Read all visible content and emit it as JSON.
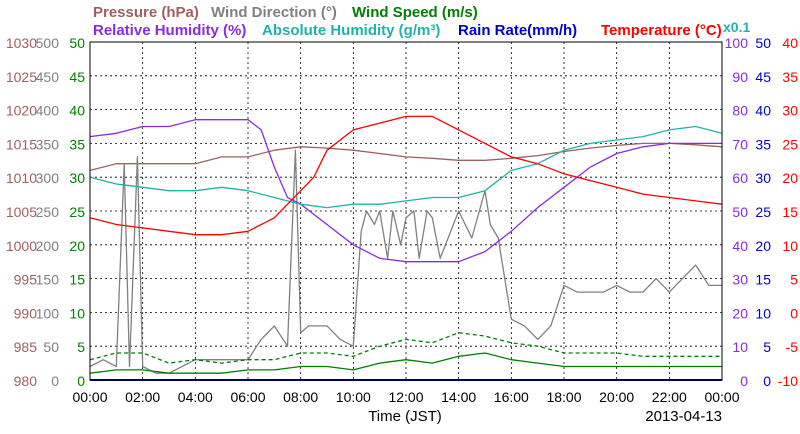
{
  "chart_data": {
    "type": "line",
    "date": "2013-04-13",
    "xlabel": "Time (JST)",
    "x_ticks": [
      "00:00",
      "02:00",
      "04:00",
      "06:00",
      "08:00",
      "10:00",
      "12:00",
      "14:00",
      "16:00",
      "18:00",
      "20:00",
      "22:00",
      "00:00"
    ],
    "grid": true,
    "legend": [
      {
        "text": "Pressure (hPa)",
        "color": "#a0605f"
      },
      {
        "text": "Wind Direction (°)",
        "color": "#808080"
      },
      {
        "text": "Wind Speed (m/s)",
        "color": "#008000"
      },
      {
        "text": "Relative Humidity (%)",
        "color": "#8a2be2"
      },
      {
        "text": "Absolute Humidity (g/m³)",
        "color": "#20b2aa"
      },
      {
        "text": "Rain Rate(mm/h)",
        "color": "#0000cc"
      },
      {
        "text": "Temperature (°C)",
        "color": "#ff0000"
      }
    ],
    "rain_scale_note": "x0.1",
    "axes": {
      "pressure": {
        "color": "#a0605f",
        "ylim": [
          980,
          1030
        ],
        "ticks": [
          "1030",
          "1025",
          "1020",
          "1015",
          "1010",
          "1005",
          "1000",
          "995",
          "990",
          "985",
          "980"
        ]
      },
      "wind_direction": {
        "color": "#808080",
        "ylim": [
          0,
          500
        ],
        "ticks": [
          "500",
          "450",
          "400",
          "350",
          "300",
          "250",
          "200",
          "150",
          "100",
          "50",
          "0"
        ]
      },
      "wind_speed": {
        "color": "#008000",
        "ylim": [
          0,
          50
        ],
        "ticks": [
          "50",
          "45",
          "40",
          "35",
          "30",
          "25",
          "20",
          "15",
          "10",
          "5",
          "0"
        ]
      },
      "humidity": {
        "color": "#8a2be2",
        "ylim": [
          0,
          100
        ],
        "ticks": [
          "100",
          "90",
          "80",
          "70",
          "60",
          "50",
          "40",
          "30",
          "20",
          "10",
          "0"
        ]
      },
      "rain_abs": {
        "color": "#0000cc",
        "ylim": [
          0,
          50
        ],
        "ticks": [
          "50",
          "45",
          "40",
          "35",
          "30",
          "25",
          "20",
          "15",
          "10",
          "5",
          "0"
        ]
      },
      "temperature": {
        "color": "#ff0000",
        "ylim": [
          -10,
          40
        ],
        "ticks": [
          "40",
          "35",
          "30",
          "25",
          "20",
          "15",
          "10",
          "5",
          "0",
          "-5",
          "-10"
        ]
      }
    },
    "series": [
      {
        "name": "Pressure (hPa)",
        "axis": "pressure",
        "color": "#a0605f",
        "x": [
          0,
          1,
          2,
          3,
          4,
          5,
          6,
          7,
          8,
          9,
          10,
          11,
          12,
          13,
          14,
          15,
          16,
          17,
          18,
          19,
          20,
          21,
          22,
          23,
          24
        ],
        "y": [
          1011,
          1012,
          1012,
          1012,
          1012,
          1013,
          1013,
          1014,
          1014.5,
          1014.3,
          1014,
          1013.5,
          1013,
          1012.8,
          1012.5,
          1012.5,
          1012.8,
          1013.2,
          1013.8,
          1014.3,
          1014.7,
          1015,
          1015,
          1014.8,
          1014.5
        ]
      },
      {
        "name": "Wind Direction (°)",
        "axis": "wind_direction",
        "color": "#808080",
        "x": [
          0,
          0.5,
          1,
          1.3,
          1.5,
          1.8,
          2,
          2.5,
          3,
          4,
          5,
          6,
          6.5,
          7,
          7.5,
          7.8,
          8,
          8.3,
          9,
          9.5,
          10,
          10.3,
          10.5,
          10.8,
          11,
          11.3,
          11.5,
          11.8,
          12,
          12.3,
          12.5,
          12.8,
          13,
          13.3,
          13.5,
          14,
          14.5,
          15,
          15.2,
          15.5,
          16,
          16.5,
          17,
          17.5,
          18,
          18.5,
          19,
          19.5,
          20,
          20.5,
          21,
          21.5,
          22,
          22.5,
          23,
          23.5,
          24
        ],
        "y": [
          20,
          30,
          20,
          320,
          20,
          330,
          20,
          10,
          10,
          30,
          30,
          30,
          60,
          80,
          50,
          340,
          70,
          80,
          80,
          60,
          50,
          220,
          250,
          230,
          250,
          180,
          250,
          200,
          240,
          250,
          180,
          250,
          240,
          180,
          200,
          250,
          210,
          280,
          230,
          210,
          90,
          80,
          60,
          80,
          140,
          130,
          130,
          130,
          140,
          130,
          130,
          150,
          130,
          150,
          170,
          140,
          140
        ]
      },
      {
        "name": "Wind Speed (m/s)",
        "axis": "wind_speed",
        "color": "#008000",
        "x": [
          0,
          1,
          2,
          3,
          4,
          5,
          6,
          7,
          8,
          9,
          10,
          11,
          12,
          13,
          14,
          15,
          16,
          17,
          18,
          19,
          20,
          21,
          22,
          23,
          24
        ],
        "y": [
          1,
          1.5,
          1.5,
          1,
          1,
          1,
          1.5,
          1.5,
          2,
          2,
          1.5,
          2.5,
          3,
          2.5,
          3.5,
          4,
          3,
          2.5,
          2,
          2,
          2,
          2,
          2,
          2,
          2
        ]
      },
      {
        "name": "Wind Speed gust (m/s)",
        "axis": "wind_speed",
        "color": "#008000",
        "dashed": true,
        "x": [
          0,
          1,
          2,
          3,
          4,
          5,
          6,
          7,
          8,
          9,
          10,
          11,
          12,
          13,
          14,
          15,
          16,
          17,
          18,
          19,
          20,
          21,
          22,
          23,
          24
        ],
        "y": [
          3,
          4,
          4,
          2.5,
          3,
          2.5,
          3,
          3,
          4,
          4,
          3.5,
          5,
          6,
          5.5,
          7,
          6.5,
          5.5,
          5,
          4,
          4,
          4,
          3.5,
          3.5,
          3.5,
          3.5
        ]
      },
      {
        "name": "Relative Humidity (%)",
        "axis": "humidity",
        "color": "#8a2be2",
        "x": [
          0,
          1,
          2,
          3,
          4,
          5,
          6,
          6.5,
          7,
          7.5,
          8,
          8.5,
          9,
          10,
          11,
          12,
          13,
          14,
          15,
          16,
          17,
          18,
          19,
          20,
          21,
          22,
          23,
          24
        ],
        "y": [
          72,
          73,
          75,
          75,
          77,
          77,
          77,
          74,
          63,
          54,
          52,
          49,
          46,
          40,
          36,
          35,
          35,
          35,
          38,
          44,
          51,
          57,
          63,
          67,
          69,
          70,
          70,
          70
        ]
      },
      {
        "name": "Absolute Humidity (g/m³)",
        "axis": "rain_abs",
        "color": "#20b2aa",
        "x": [
          0,
          1,
          2,
          3,
          4,
          5,
          6,
          7,
          8,
          9,
          10,
          11,
          12,
          13,
          14,
          15,
          16,
          17,
          18,
          19,
          20,
          21,
          22,
          23,
          24
        ],
        "y": [
          30,
          29,
          28.5,
          28,
          28,
          28.5,
          28,
          27,
          26,
          25.5,
          26,
          26,
          26.5,
          27,
          27,
          28,
          31,
          32,
          34,
          35,
          35.5,
          36,
          37,
          37.5,
          36.5
        ]
      },
      {
        "name": "Rain Rate(mm/h)",
        "axis": "rain_abs",
        "color": "#0000cc",
        "x": [
          0,
          24
        ],
        "y": [
          0,
          0
        ]
      },
      {
        "name": "Temperature (°C)",
        "axis": "temperature",
        "color": "#ff0000",
        "x": [
          0,
          1,
          2,
          3,
          4,
          5,
          6,
          7,
          8,
          8.5,
          9,
          10,
          11,
          12,
          13,
          14,
          15,
          16,
          17,
          18,
          19,
          20,
          21,
          22,
          23,
          24
        ],
        "y": [
          14,
          13,
          12.5,
          12,
          11.5,
          11.5,
          12,
          14,
          18,
          20,
          24,
          27,
          28,
          29,
          29,
          27,
          25,
          23,
          22,
          20.5,
          19.5,
          18.5,
          17.5,
          17,
          16.5,
          16
        ]
      }
    ]
  }
}
